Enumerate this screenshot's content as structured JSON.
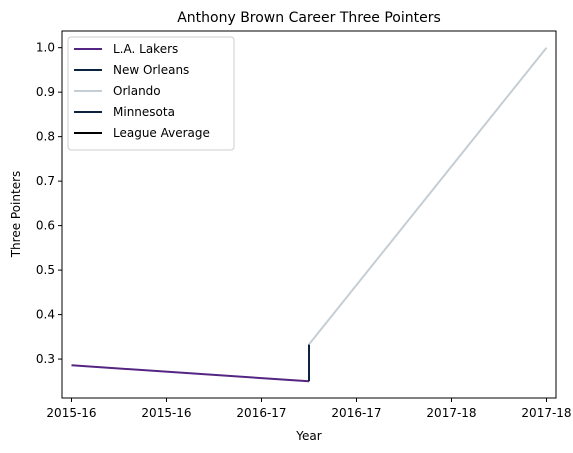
{
  "chart_data": {
    "type": "line",
    "title": "Anthony Brown  Career Three Pointers",
    "xlabel": "Year",
    "ylabel": "Three Pointers",
    "x_tick_labels": [
      "2015-16",
      "2015-16",
      "2016-17",
      "2016-17",
      "2017-18",
      "2017-18"
    ],
    "xlim": [
      -0.1,
      5.1
    ],
    "ylim": [
      0.2125,
      1.0375
    ],
    "y_ticks": [
      0.3,
      0.4,
      0.5,
      0.6,
      0.7,
      0.8,
      0.9,
      1.0
    ],
    "y_tick_labels": [
      "0.3",
      "0.4",
      "0.5",
      "0.6",
      "0.7",
      "0.8",
      "0.9",
      "1.0"
    ],
    "grid": false,
    "legend_position": "top-left",
    "series": [
      {
        "name": "L.A. Lakers",
        "color": "#552583",
        "x": [
          0,
          2.5
        ],
        "y": [
          0.286,
          0.25
        ]
      },
      {
        "name": "New Orleans",
        "color": "#0C2340",
        "x": [
          2.5,
          2.5
        ],
        "y": [
          0.25,
          0.333
        ]
      },
      {
        "name": "Orlando",
        "color": "#C4CED4",
        "x": [
          2.5,
          5
        ],
        "y": [
          0.333,
          1.0
        ]
      },
      {
        "name": "Minnesota",
        "color": "#0C2340",
        "x": [],
        "y": []
      },
      {
        "name": "League Average",
        "color": "#000000",
        "x": [],
        "y": []
      }
    ]
  }
}
